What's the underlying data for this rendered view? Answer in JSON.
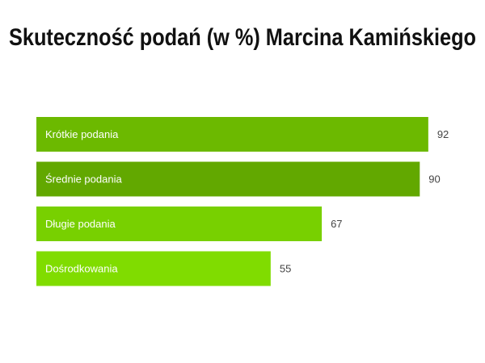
{
  "chart_data": {
    "type": "bar",
    "orientation": "horizontal",
    "title": "Skuteczność podań (w %) Marcina Kamińskiego",
    "categories": [
      "Krótkie podania",
      "Średnie podania",
      "Długie podania",
      "Dośrodkowania"
    ],
    "values": [
      92,
      90,
      67,
      55
    ],
    "colors": [
      "#6cb900",
      "#62a800",
      "#78d000",
      "#80dc00"
    ],
    "xlim": [
      0,
      100
    ]
  }
}
